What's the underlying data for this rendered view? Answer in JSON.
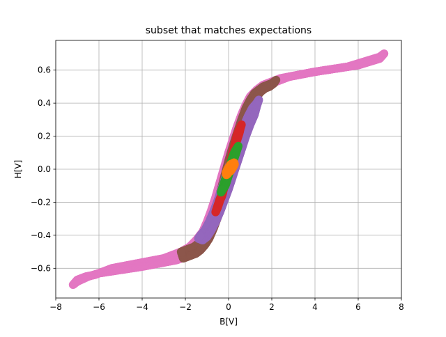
{
  "chart_data": {
    "type": "scatter",
    "title": "subset that matches expectations",
    "xlabel": "B[V]",
    "ylabel": "H[V]",
    "xlim": [
      -8,
      8
    ],
    "ylim": [
      -0.78,
      0.78
    ],
    "grid": true,
    "legend": "none",
    "x_ticks": [
      -8,
      -6,
      -4,
      -2,
      0,
      2,
      4,
      6,
      8
    ],
    "x_tick_labels": [
      "−8",
      "−6",
      "−4",
      "−2",
      "0",
      "2",
      "4",
      "6",
      "8"
    ],
    "y_ticks": [
      -0.6,
      -0.4,
      -0.2,
      0.0,
      0.2,
      0.4,
      0.6
    ],
    "y_tick_labels": [
      "−0.6",
      "−0.4",
      "−0.2",
      "0.0",
      "0.2",
      "0.4",
      "0.6"
    ],
    "series": [
      {
        "color": "#ff7f0e",
        "x": [
          -0.1,
          -0.05,
          0.0,
          0.05,
          0.1,
          0.2,
          0.25,
          0.28,
          0.2,
          0.1,
          0.0,
          -0.05,
          -0.1,
          -0.12
        ],
        "y": [
          -0.02,
          0.0,
          0.01,
          0.02,
          0.03,
          0.035,
          0.04,
          0.03,
          0.01,
          -0.01,
          -0.02,
          -0.03,
          -0.035,
          -0.02
        ]
      },
      {
        "color": "#2ca02c",
        "x": [
          -0.3,
          -0.2,
          -0.1,
          0.0,
          0.1,
          0.2,
          0.3,
          0.4,
          0.45,
          0.35,
          0.25,
          0.15,
          0.05,
          -0.05,
          -0.15,
          -0.25,
          -0.35
        ],
        "y": [
          -0.12,
          -0.08,
          -0.04,
          0.0,
          0.04,
          0.08,
          0.11,
          0.13,
          0.14,
          0.1,
          0.06,
          0.02,
          -0.02,
          -0.06,
          -0.1,
          -0.12,
          -0.14
        ]
      },
      {
        "color": "#d62728",
        "x": [
          -0.6,
          -0.5,
          -0.4,
          -0.3,
          0.3,
          0.4,
          0.5,
          0.55,
          0.6,
          0.5,
          0.4,
          -0.3,
          -0.4,
          -0.5
        ],
        "y": [
          -0.26,
          -0.22,
          -0.18,
          -0.15,
          0.14,
          0.18,
          0.22,
          0.25,
          0.27,
          0.24,
          0.21,
          -0.16,
          -0.19,
          -0.23
        ]
      },
      {
        "color": "#9467bd",
        "x": [
          -1.3,
          -1.1,
          -0.9,
          -0.7,
          -0.5,
          -0.3,
          -0.1,
          0.1,
          0.3,
          0.5,
          0.7,
          0.9,
          1.1,
          1.3,
          1.4,
          1.3,
          1.2,
          1.0,
          0.8,
          0.6,
          0.4,
          0.2,
          0.0,
          -0.2,
          -0.4,
          -0.6,
          -0.8,
          -1.0,
          -1.2,
          -1.4
        ],
        "y": [
          -0.4,
          -0.37,
          -0.32,
          -0.26,
          -0.19,
          -0.11,
          -0.03,
          0.05,
          0.12,
          0.19,
          0.26,
          0.32,
          0.37,
          0.4,
          0.42,
          0.38,
          0.33,
          0.27,
          0.2,
          0.12,
          0.04,
          -0.04,
          -0.12,
          -0.19,
          -0.26,
          -0.32,
          -0.37,
          -0.41,
          -0.43,
          -0.42
        ]
      },
      {
        "color": "#8c564b",
        "x": [
          -2.2,
          -2.0,
          -1.8,
          -1.6,
          -1.4,
          -1.2,
          -1.0,
          -0.8,
          -0.6,
          -0.4,
          -0.2,
          0.0,
          0.2,
          0.4,
          0.6,
          0.8,
          1.0,
          1.2,
          1.4,
          1.6,
          1.8,
          2.0,
          2.2,
          2.1,
          1.9,
          1.7,
          1.5,
          1.3,
          1.1,
          0.9,
          0.7,
          0.5,
          0.3,
          0.1,
          -0.1,
          -0.3,
          -0.5,
          -0.7,
          -0.9,
          -1.1,
          -1.3,
          -1.5,
          -1.7,
          -1.9,
          -2.1
        ],
        "y": [
          -0.5,
          -0.49,
          -0.48,
          -0.47,
          -0.45,
          -0.42,
          -0.38,
          -0.32,
          -0.25,
          -0.15,
          -0.05,
          0.05,
          0.14,
          0.22,
          0.3,
          0.37,
          0.42,
          0.46,
          0.48,
          0.5,
          0.51,
          0.52,
          0.54,
          0.52,
          0.5,
          0.49,
          0.47,
          0.44,
          0.4,
          0.34,
          0.27,
          0.18,
          0.08,
          -0.02,
          -0.12,
          -0.21,
          -0.29,
          -0.36,
          -0.42,
          -0.46,
          -0.49,
          -0.51,
          -0.52,
          -0.53,
          -0.54
        ]
      },
      {
        "color": "#e377c2",
        "x": [
          -7.2,
          -7.0,
          -6.6,
          -6.2,
          -5.8,
          -5.4,
          -5.0,
          -4.6,
          -4.2,
          -3.8,
          -3.4,
          -3.0,
          -2.6,
          -2.2,
          -1.8,
          -1.5,
          -1.2,
          -1.0,
          -0.8,
          -0.6,
          -0.4,
          -0.2,
          0.0,
          0.2,
          0.4,
          0.6,
          0.8,
          1.0,
          1.3,
          1.6,
          2.0,
          2.4,
          2.8,
          3.2,
          3.6,
          4.0,
          4.5,
          5.0,
          5.5,
          6.0,
          6.5,
          7.0,
          7.2,
          7.0,
          6.5,
          6.0,
          5.5,
          5.0,
          4.5,
          4.0,
          3.6,
          3.2,
          2.8,
          2.4,
          2.0,
          1.6,
          1.3,
          1.0,
          0.8,
          0.6,
          0.4,
          0.2,
          0.0,
          -0.2,
          -0.4,
          -0.6,
          -0.8,
          -1.0,
          -1.3,
          -1.6,
          -2.0,
          -2.4,
          -2.8,
          -3.2,
          -3.6,
          -4.0,
          -4.5,
          -5.0,
          -5.5,
          -6.0,
          -6.5,
          -7.0
        ],
        "y": [
          -0.7,
          -0.67,
          -0.65,
          -0.64,
          -0.62,
          -0.6,
          -0.59,
          -0.58,
          -0.57,
          -0.56,
          -0.55,
          -0.54,
          -0.52,
          -0.5,
          -0.47,
          -0.43,
          -0.38,
          -0.32,
          -0.25,
          -0.17,
          -0.08,
          0.01,
          0.1,
          0.18,
          0.26,
          0.33,
          0.39,
          0.44,
          0.48,
          0.51,
          0.53,
          0.55,
          0.56,
          0.57,
          0.58,
          0.59,
          0.6,
          0.61,
          0.62,
          0.64,
          0.66,
          0.68,
          0.7,
          0.67,
          0.65,
          0.63,
          0.62,
          0.61,
          0.6,
          0.59,
          0.58,
          0.57,
          0.56,
          0.54,
          0.52,
          0.49,
          0.45,
          0.38,
          0.31,
          0.23,
          0.14,
          0.05,
          -0.04,
          -0.13,
          -0.22,
          -0.3,
          -0.37,
          -0.43,
          -0.48,
          -0.51,
          -0.53,
          -0.55,
          -0.56,
          -0.57,
          -0.58,
          -0.59,
          -0.6,
          -0.61,
          -0.62,
          -0.63,
          -0.65,
          -0.68
        ]
      }
    ]
  }
}
